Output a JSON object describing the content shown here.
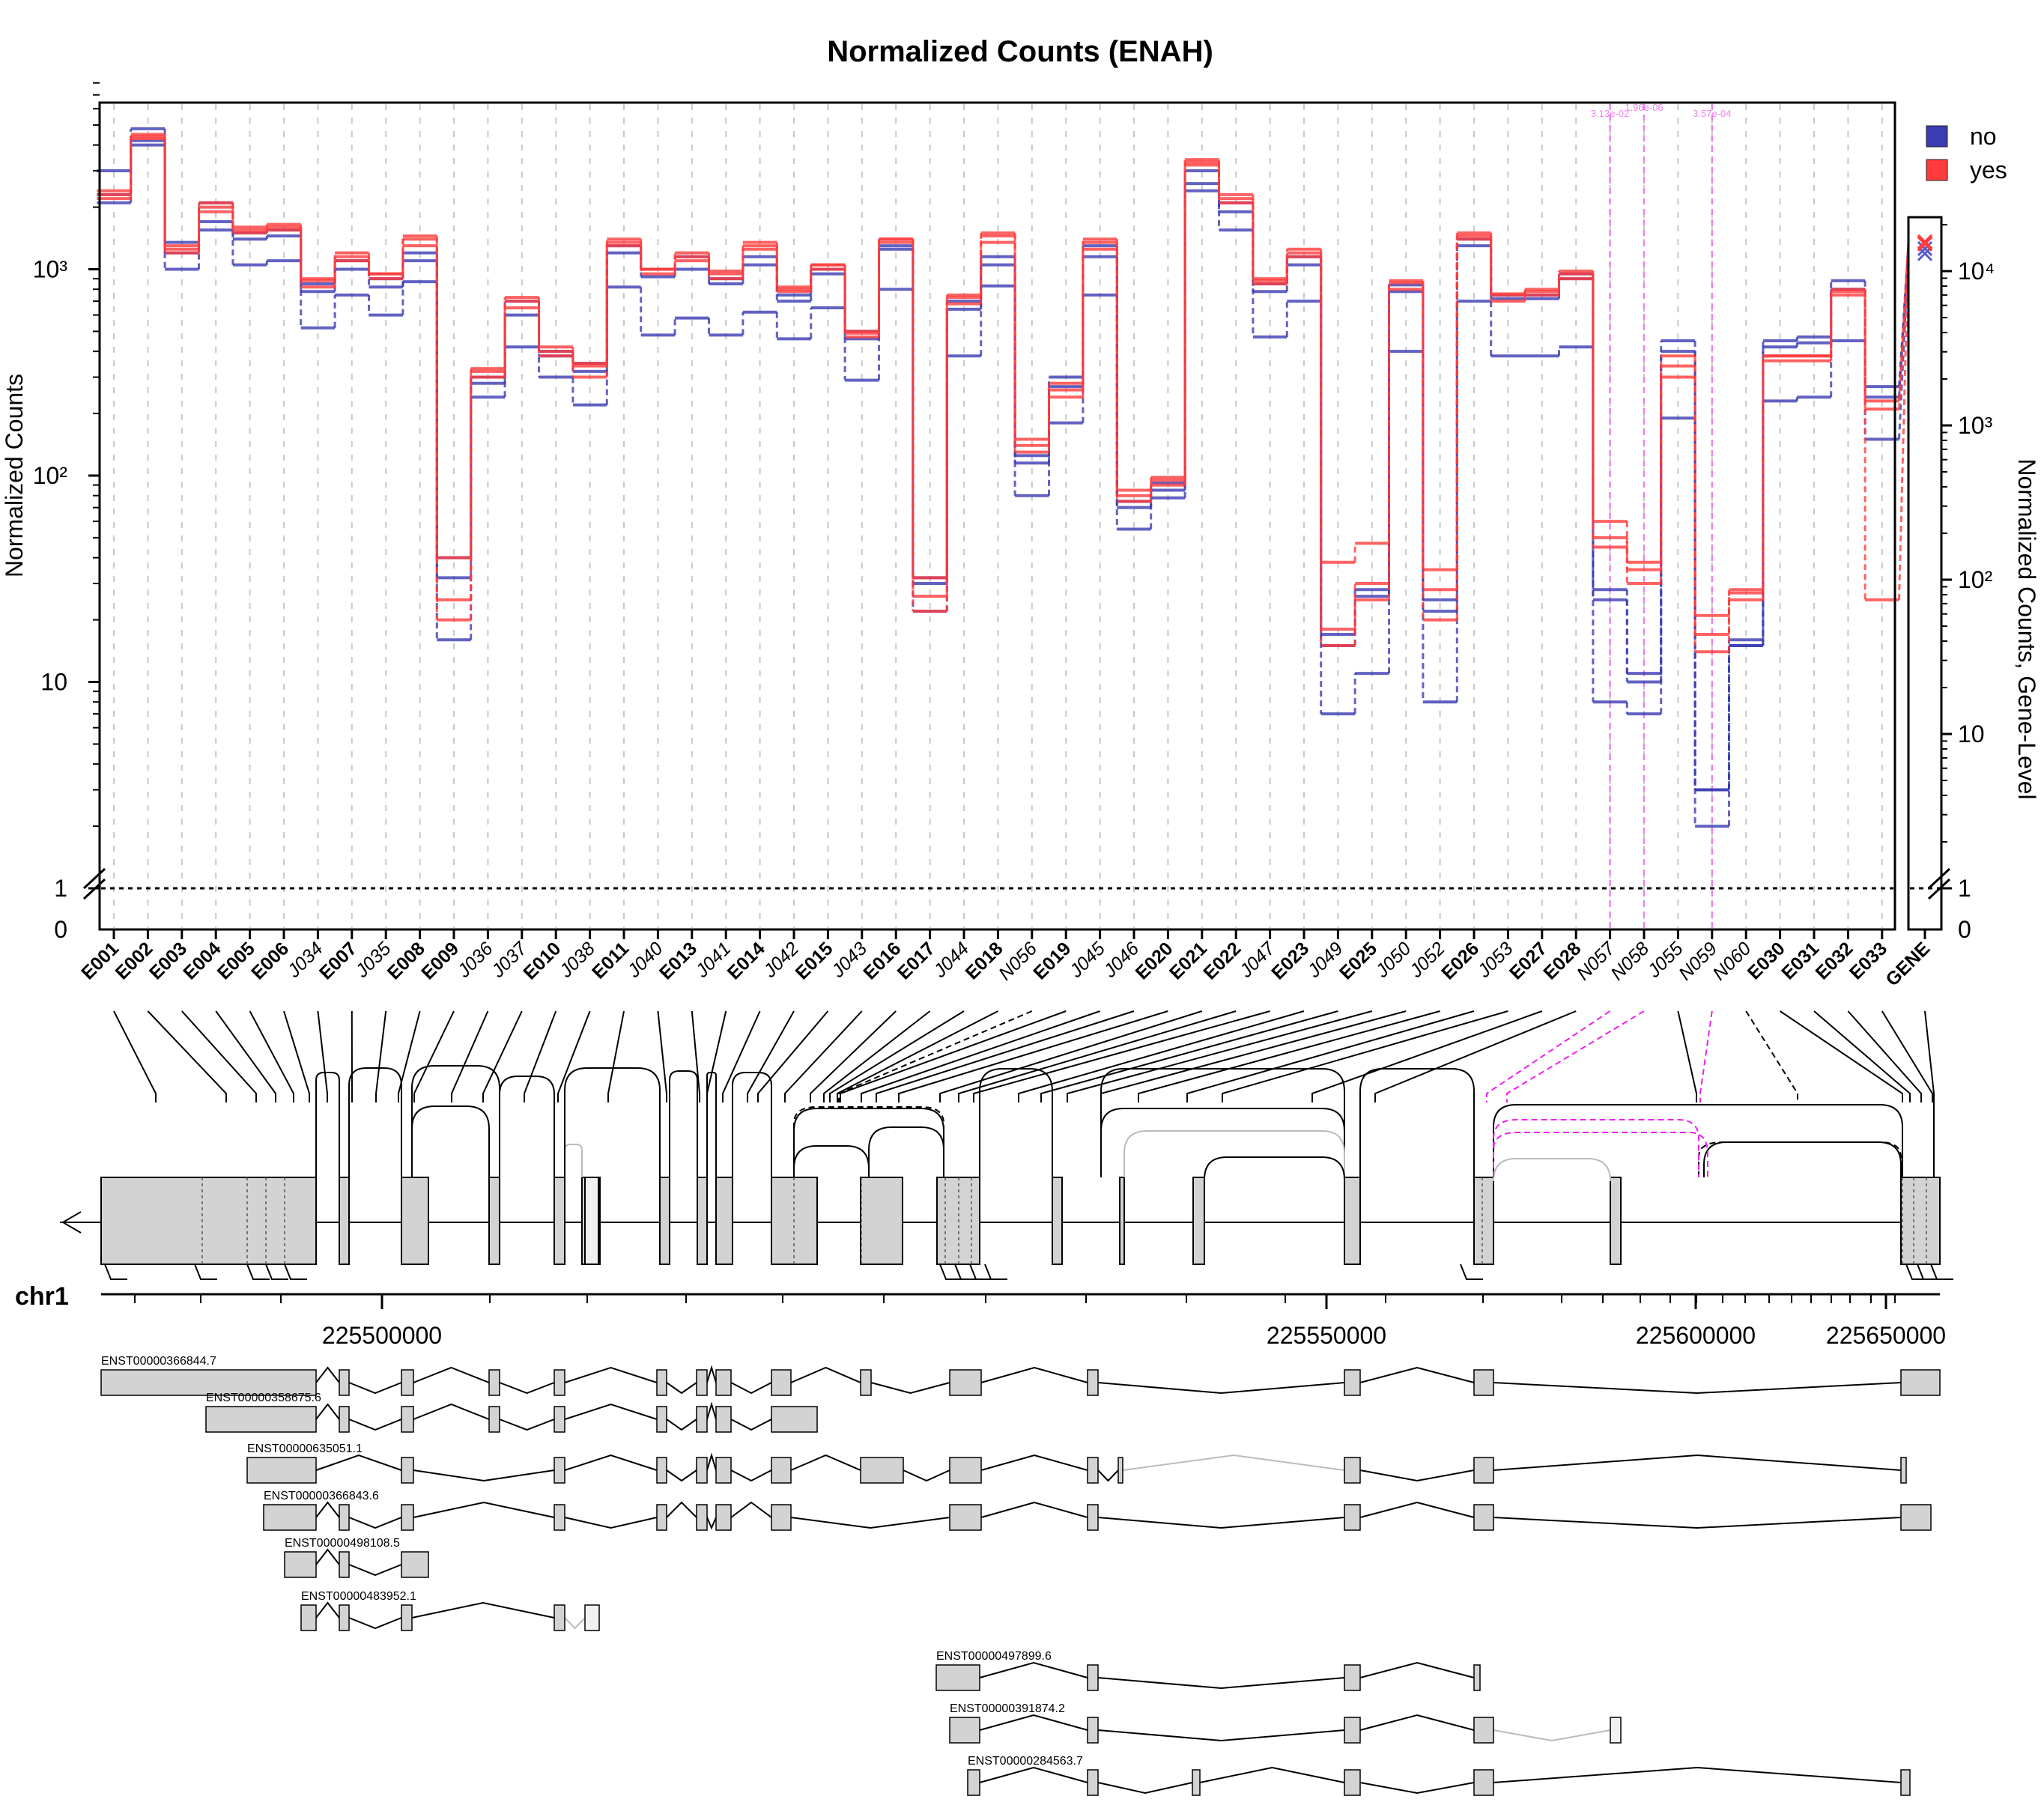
{
  "title": "Normalized Counts (ENAH)",
  "chart_data": {
    "type": "line",
    "title": "Normalized Counts (ENAH)",
    "ylabel": "Normalized Counts",
    "ylabel_right": "Normalized Counts, Gene-Level",
    "y_scale": "log",
    "ylim": [
      0,
      8000
    ],
    "y_ticks": [
      "0",
      "1",
      "10",
      "10²",
      "10³"
    ],
    "y_ticks_right": [
      "0",
      "1",
      "10",
      "10²",
      "10³",
      "10⁴"
    ],
    "reference_line": 1,
    "legend": {
      "position": "top-right",
      "entries": [
        {
          "name": "no",
          "color": "#3b3bb3"
        },
        {
          "name": "yes",
          "color": "#ff3b3b"
        }
      ]
    },
    "features": [
      {
        "id": "E001",
        "kind": "exon"
      },
      {
        "id": "E002",
        "kind": "exon"
      },
      {
        "id": "E003",
        "kind": "exon"
      },
      {
        "id": "E004",
        "kind": "exon"
      },
      {
        "id": "E005",
        "kind": "exon"
      },
      {
        "id": "E006",
        "kind": "exon"
      },
      {
        "id": "J034",
        "kind": "junction"
      },
      {
        "id": "E007",
        "kind": "exon"
      },
      {
        "id": "J035",
        "kind": "junction"
      },
      {
        "id": "E008",
        "kind": "exon"
      },
      {
        "id": "E009",
        "kind": "exon"
      },
      {
        "id": "J036",
        "kind": "junction"
      },
      {
        "id": "J037",
        "kind": "junction"
      },
      {
        "id": "E010",
        "kind": "exon"
      },
      {
        "id": "J038",
        "kind": "junction"
      },
      {
        "id": "E011",
        "kind": "exon"
      },
      {
        "id": "J040",
        "kind": "junction"
      },
      {
        "id": "E013",
        "kind": "exon"
      },
      {
        "id": "J041",
        "kind": "junction"
      },
      {
        "id": "E014",
        "kind": "exon"
      },
      {
        "id": "J042",
        "kind": "junction"
      },
      {
        "id": "E015",
        "kind": "exon"
      },
      {
        "id": "J043",
        "kind": "junction"
      },
      {
        "id": "E016",
        "kind": "exon"
      },
      {
        "id": "E017",
        "kind": "exon"
      },
      {
        "id": "J044",
        "kind": "junction"
      },
      {
        "id": "E018",
        "kind": "exon"
      },
      {
        "id": "N056",
        "kind": "novel"
      },
      {
        "id": "E019",
        "kind": "exon"
      },
      {
        "id": "J045",
        "kind": "junction"
      },
      {
        "id": "J046",
        "kind": "junction"
      },
      {
        "id": "E020",
        "kind": "exon"
      },
      {
        "id": "E021",
        "kind": "exon"
      },
      {
        "id": "E022",
        "kind": "exon"
      },
      {
        "id": "J047",
        "kind": "junction"
      },
      {
        "id": "E023",
        "kind": "exon"
      },
      {
        "id": "J049",
        "kind": "junction"
      },
      {
        "id": "E025",
        "kind": "exon"
      },
      {
        "id": "J050",
        "kind": "junction"
      },
      {
        "id": "J052",
        "kind": "junction"
      },
      {
        "id": "E026",
        "kind": "exon"
      },
      {
        "id": "J053",
        "kind": "junction"
      },
      {
        "id": "E027",
        "kind": "exon"
      },
      {
        "id": "E028",
        "kind": "exon"
      },
      {
        "id": "N057",
        "kind": "novel"
      },
      {
        "id": "N058",
        "kind": "novel"
      },
      {
        "id": "J055",
        "kind": "junction"
      },
      {
        "id": "N059",
        "kind": "novel"
      },
      {
        "id": "N060",
        "kind": "novel"
      },
      {
        "id": "E030",
        "kind": "exon"
      },
      {
        "id": "E031",
        "kind": "exon"
      },
      {
        "id": "E032",
        "kind": "exon"
      },
      {
        "id": "E033",
        "kind": "exon"
      }
    ],
    "gene_label": "GENE",
    "series": [
      {
        "name": "no",
        "values": [
          3000,
          4800,
          1350,
          2100,
          1500,
          1550,
          850,
          1100,
          900,
          1200,
          40,
          300,
          700,
          400,
          350,
          1300,
          1000,
          1150,
          900,
          1150,
          750,
          1000,
          500,
          1300,
          32,
          700,
          1150,
          125,
          300,
          1300,
          75,
          92,
          3000,
          2100,
          850,
          1150,
          17,
          28,
          840,
          25,
          1400,
          750,
          750,
          950,
          28,
          11,
          450,
          3,
          16,
          450,
          470,
          880,
          270
        ],
        "gene": 15000
      },
      {
        "name": "no",
        "values": [
          2300,
          4200,
          1200,
          1700,
          1400,
          1450,
          780,
          1000,
          820,
          1100,
          32,
          280,
          600,
          380,
          320,
          1200,
          920,
          1000,
          850,
          1050,
          700,
          950,
          460,
          1250,
          30,
          640,
          1050,
          115,
          270,
          1150,
          70,
          85,
          2600,
          1900,
          780,
          1050,
          15,
          26,
          780,
          22,
          1300,
          720,
          720,
          900,
          25,
          10,
          400,
          3,
          15,
          420,
          440,
          800,
          240
        ],
        "gene": 14000
      },
      {
        "name": "no",
        "values": [
          2100,
          4000,
          1000,
          1550,
          1050,
          1100,
          520,
          750,
          600,
          870,
          16,
          240,
          420,
          300,
          220,
          820,
          480,
          580,
          480,
          620,
          460,
          650,
          290,
          800,
          22,
          380,
          830,
          80,
          180,
          750,
          55,
          78,
          2400,
          1550,
          470,
          700,
          7,
          11,
          400,
          8,
          700,
          380,
          380,
          420,
          8,
          7,
          190,
          2,
          15,
          230,
          240,
          450,
          150
        ],
        "gene": 13000
      },
      {
        "name": "yes",
        "values": [
          2300,
          4400,
          1250,
          2000,
          1550,
          1600,
          900,
          1150,
          950,
          1400,
          40,
          330,
          730,
          420,
          350,
          1400,
          1000,
          1150,
          980,
          1350,
          800,
          1050,
          500,
          1400,
          32,
          730,
          1500,
          150,
          280,
          1400,
          85,
          98,
          3400,
          2200,
          900,
          1200,
          18,
          30,
          860,
          35,
          1500,
          750,
          800,
          950,
          60,
          38,
          380,
          21,
          28,
          380,
          380,
          800,
          230
        ],
        "gene": 15500
      },
      {
        "name": "yes",
        "values": [
          2200,
          4300,
          1200,
          1900,
          1500,
          1550,
          820,
          1100,
          900,
          1300,
          25,
          300,
          650,
          380,
          300,
          1300,
          950,
          1100,
          900,
          1250,
          780,
          1000,
          470,
          1350,
          26,
          680,
          1350,
          130,
          240,
          1250,
          75,
          90,
          3200,
          2100,
          850,
          1150,
          15,
          25,
          800,
          28,
          1400,
          700,
          750,
          900,
          50,
          30,
          340,
          17,
          25,
          360,
          360,
          750,
          210
        ],
        "gene": 15000
      },
      {
        "name": "yes",
        "values": [
          2400,
          4500,
          1300,
          2100,
          1600,
          1650,
          880,
          1200,
          950,
          1450,
          20,
          320,
          700,
          400,
          340,
          1350,
          1000,
          1200,
          950,
          1300,
          820,
          1050,
          490,
          1400,
          22,
          750,
          1450,
          140,
          260,
          1350,
          80,
          95,
          3300,
          2300,
          880,
          1250,
          38,
          47,
          880,
          20,
          1450,
          760,
          780,
          980,
          45,
          35,
          300,
          14,
          27,
          380,
          380,
          780,
          25
        ],
        "gene": 15200
      }
    ],
    "pvalue_annotations": [
      {
        "feature": "N057",
        "label": "3.13e-02"
      },
      {
        "feature": "N058",
        "label": "1.96e-06"
      },
      {
        "feature": "N059",
        "label": "3.57e-04"
      }
    ],
    "chromosome": "chr1",
    "coordinate_ticks": [
      "225500000",
      "225550000",
      "225600000",
      "225650000"
    ],
    "transcripts": [
      "ENST00000366844.7",
      "ENST00000358675.6",
      "ENST00000635051.1",
      "ENST00000366843.6",
      "ENST00000498108.5",
      "ENST00000483952.1",
      "ENST00000497899.6",
      "ENST00000391874.2",
      "ENST00000284563.7"
    ]
  }
}
